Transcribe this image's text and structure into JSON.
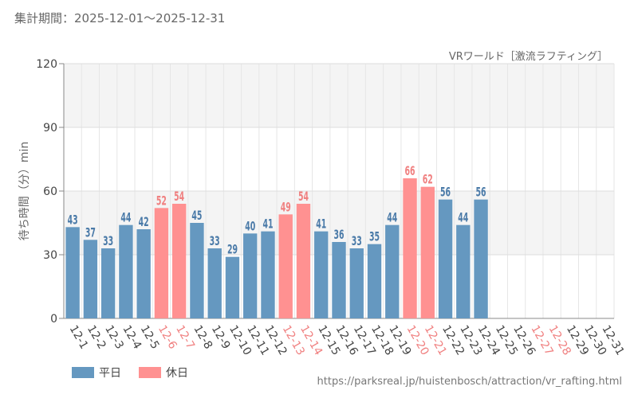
{
  "header": {
    "period": "集計期間：2025-12-01～2025-12-31",
    "source_url": "https://parksreal.jp/huistenbosch/attraction/vr_rafting.html"
  },
  "colors": {
    "weekday": "#6598c0",
    "holiday": "#ff9191",
    "weekday_label": "#4a7aa8",
    "holiday_label": "#f08080"
  },
  "chart_data": {
    "type": "bar",
    "title": "VRワールド［激流ラフティング］",
    "ylabel": "待ち時間（分）min",
    "xlabel": "",
    "ylim": [
      0,
      120
    ],
    "yticks": [
      0,
      30,
      60,
      90,
      120
    ],
    "grid": true,
    "legend_position": "bottom-left",
    "legend": [
      {
        "name": "平日",
        "key": "weekday"
      },
      {
        "name": "休日",
        "key": "holiday"
      }
    ],
    "categories": [
      "12-1",
      "12-2",
      "12-3",
      "12-4",
      "12-5",
      "12-6",
      "12-7",
      "12-8",
      "12-9",
      "12-10",
      "12-11",
      "12-12",
      "12-13",
      "12-14",
      "12-15",
      "12-16",
      "12-17",
      "12-18",
      "12-19",
      "12-20",
      "12-21",
      "12-22",
      "12-23",
      "12-24",
      "12-25",
      "12-26",
      "12-27",
      "12-28",
      "12-29",
      "12-30",
      "12-31"
    ],
    "values": [
      43,
      37,
      33,
      44,
      42,
      52,
      54,
      45,
      33,
      29,
      40,
      41,
      49,
      54,
      41,
      36,
      33,
      35,
      44,
      66,
      62,
      56,
      44,
      56,
      null,
      null,
      null,
      null,
      null,
      null,
      null
    ],
    "holiday": [
      false,
      false,
      false,
      false,
      false,
      true,
      true,
      false,
      false,
      false,
      false,
      false,
      true,
      true,
      false,
      false,
      false,
      false,
      false,
      true,
      true,
      false,
      false,
      false,
      false,
      false,
      true,
      true,
      false,
      false,
      false
    ]
  }
}
